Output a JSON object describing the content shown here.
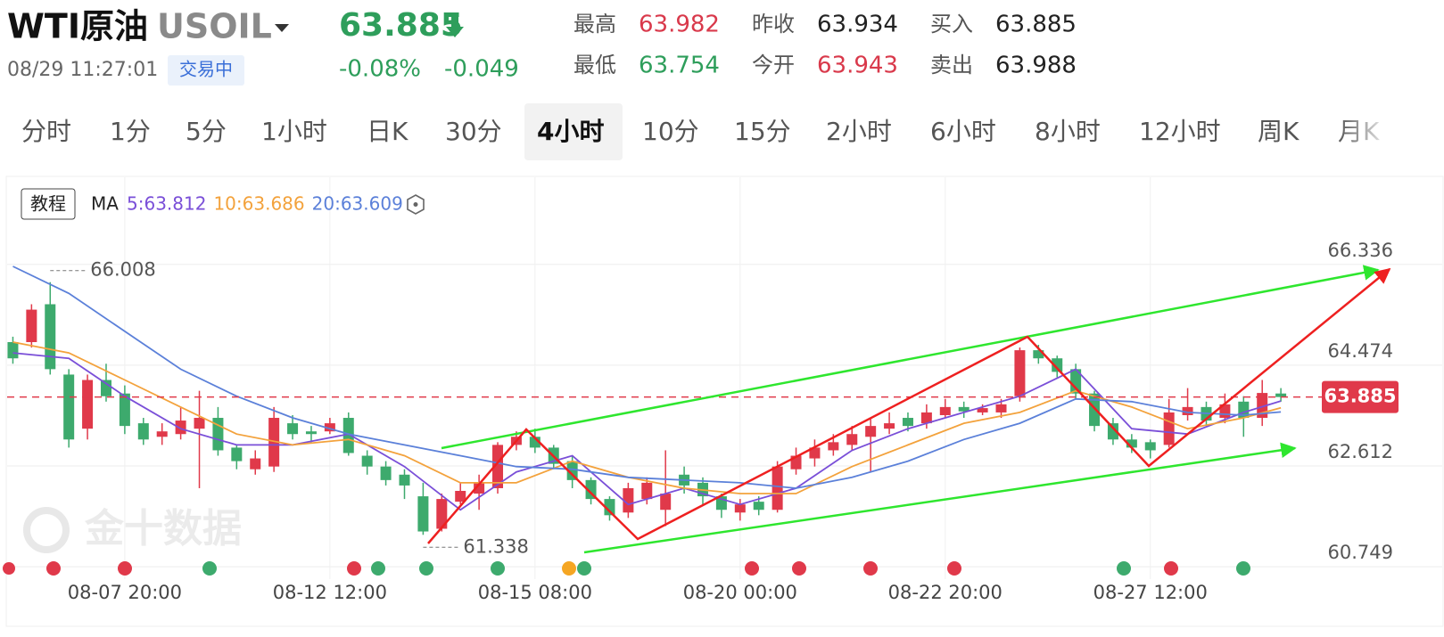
{
  "header": {
    "name": "WTI原油",
    "symbol": "USOIL",
    "price": "63.885",
    "time": "08/29 11:27:01",
    "status": "交易中",
    "change_pct": "-0.08%",
    "change": "-0.049",
    "stats": [
      {
        "label": "最高",
        "value": "63.982",
        "color": "#d9394b"
      },
      {
        "label": "昨收",
        "value": "63.934",
        "color": "#222222"
      },
      {
        "label": "买入",
        "value": "63.885",
        "color": "#222222"
      },
      {
        "label": "最低",
        "value": "63.754",
        "color": "#2e9e5b"
      },
      {
        "label": "今开",
        "value": "63.943",
        "color": "#d9394b"
      },
      {
        "label": "卖出",
        "value": "63.988",
        "color": "#222222"
      }
    ]
  },
  "tabs": [
    "分时",
    "1分",
    "5分",
    "1小时",
    "日K",
    "30分",
    "4小时",
    "10分",
    "15分",
    "2小时",
    "6小时",
    "8小时",
    "12小时",
    "周K",
    "月K"
  ],
  "active_tab": 6,
  "toolbar": {
    "tutorial": "教程",
    "ma_label": "MA"
  },
  "watermark": "金十数据",
  "chart_data": {
    "type": "candlestick",
    "up_color": "#e0394a",
    "down_color": "#3daa6d",
    "x": [
      0,
      1,
      2,
      3,
      4,
      5,
      6,
      7,
      8,
      9,
      10,
      11,
      12,
      13,
      14,
      15,
      16,
      17,
      18,
      19,
      20,
      21,
      22,
      23,
      24,
      25,
      26,
      27,
      28,
      29,
      30,
      31,
      32,
      33,
      34,
      35,
      36,
      37,
      38,
      39,
      40,
      41,
      42,
      43,
      44,
      45,
      46,
      47,
      48,
      49,
      50,
      51,
      52,
      53,
      54,
      55,
      56,
      57,
      58,
      59,
      60,
      61,
      62,
      63,
      64,
      65,
      66,
      67,
      68
    ],
    "open": [
      64.9,
      64.9,
      65.6,
      64.3,
      63.3,
      64.2,
      63.95,
      63.4,
      63.15,
      63.2,
      63.3,
      63.5,
      62.95,
      62.55,
      62.6,
      63.4,
      63.25,
      63.25,
      63.5,
      62.8,
      62.6,
      62.45,
      62.05,
      61.45,
      61.95,
      62.1,
      62.2,
      63.0,
      63.15,
      62.95,
      62.7,
      62.35,
      62.0,
      61.75,
      62.0,
      61.8,
      62.45,
      62.3,
      62.05,
      61.75,
      61.95,
      61.8,
      62.55,
      62.75,
      62.9,
      63.0,
      63.15,
      63.3,
      63.5,
      63.4,
      63.55,
      63.7,
      63.6,
      63.6,
      63.9,
      64.75,
      64.6,
      64.4,
      63.95,
      63.4,
      63.1,
      63.05,
      63.0,
      63.55,
      63.7,
      63.5,
      63.8,
      63.5,
      63.95
    ],
    "high": [
      65.0,
      65.6,
      66.008,
      64.4,
      64.3,
      64.5,
      64.1,
      63.5,
      63.4,
      63.7,
      64.0,
      63.7,
      63.0,
      62.9,
      63.7,
      63.55,
      63.35,
      63.5,
      63.6,
      62.9,
      62.7,
      62.55,
      62.3,
      62.1,
      62.3,
      62.45,
      63.05,
      63.25,
      63.3,
      63.0,
      62.8,
      62.4,
      62.05,
      62.3,
      62.4,
      62.9,
      62.6,
      62.4,
      62.1,
      62.0,
      62.05,
      62.7,
      62.95,
      63.1,
      63.2,
      63.35,
      63.5,
      63.6,
      63.6,
      63.75,
      63.85,
      63.8,
      63.75,
      63.85,
      64.8,
      64.85,
      64.65,
      64.5,
      64.0,
      63.5,
      63.2,
      63.1,
      63.85,
      64.05,
      63.8,
      63.95,
      63.9,
      64.2,
      64.05
    ],
    "low": [
      64.5,
      64.8,
      64.3,
      62.95,
      63.1,
      63.8,
      63.2,
      63.0,
      63.0,
      63.1,
      62.2,
      62.8,
      62.55,
      62.45,
      62.5,
      63.1,
      63.05,
      63.2,
      62.8,
      62.45,
      62.25,
      62.0,
      61.338,
      61.4,
      61.9,
      61.8,
      62.1,
      62.9,
      62.85,
      62.55,
      62.2,
      61.9,
      61.6,
      61.65,
      61.9,
      61.5,
      62.1,
      61.9,
      61.65,
      61.6,
      61.7,
      61.75,
      62.45,
      62.6,
      62.8,
      62.9,
      62.5,
      63.2,
      63.25,
      63.3,
      63.5,
      63.5,
      63.55,
      63.5,
      63.8,
      64.5,
      64.25,
      63.85,
      63.25,
      63.0,
      62.85,
      62.75,
      62.95,
      63.45,
      63.35,
      63.4,
      63.15,
      63.35,
      63.8
    ],
    "close": [
      64.6,
      65.5,
      64.4,
      63.1,
      64.2,
      63.9,
      63.35,
      63.1,
      63.25,
      63.45,
      63.5,
      62.9,
      62.7,
      62.75,
      63.5,
      63.2,
      63.2,
      63.4,
      62.85,
      62.6,
      62.35,
      62.25,
      61.4,
      62.0,
      62.15,
      62.3,
      63.0,
      63.15,
      62.95,
      62.65,
      62.35,
      62.0,
      61.7,
      62.2,
      62.3,
      62.1,
      62.25,
      62.05,
      61.8,
      61.9,
      61.8,
      62.6,
      62.8,
      62.95,
      63.05,
      63.2,
      63.35,
      63.4,
      63.35,
      63.6,
      63.7,
      63.62,
      63.68,
      63.75,
      64.75,
      64.6,
      64.35,
      63.95,
      63.35,
      63.1,
      62.95,
      62.9,
      63.6,
      63.7,
      63.45,
      63.75,
      63.5,
      63.96,
      63.885
    ],
    "ma": [
      {
        "legend": "5:63.812",
        "color": "#7a4fd8",
        "x": [
          0,
          3,
          6,
          9,
          12,
          15,
          18,
          21,
          24,
          27,
          30,
          33,
          36,
          39,
          42,
          45,
          48,
          51,
          54,
          57,
          60,
          63,
          66,
          68
        ],
        "values": [
          64.7,
          64.6,
          63.9,
          63.3,
          63.0,
          63.0,
          63.2,
          62.6,
          61.8,
          62.5,
          62.8,
          61.9,
          62.2,
          61.9,
          62.2,
          62.9,
          63.3,
          63.6,
          63.9,
          64.4,
          63.3,
          63.2,
          63.6,
          63.812
        ]
      },
      {
        "legend": "10:63.686",
        "color": "#f3a23c",
        "x": [
          0,
          3,
          6,
          9,
          12,
          15,
          18,
          21,
          24,
          27,
          30,
          33,
          36,
          39,
          42,
          45,
          48,
          51,
          54,
          57,
          60,
          63,
          66,
          68
        ],
        "values": [
          64.9,
          64.7,
          64.2,
          63.7,
          63.2,
          63.0,
          63.1,
          62.8,
          62.3,
          62.3,
          62.7,
          62.4,
          62.2,
          62.1,
          62.1,
          62.6,
          63.0,
          63.4,
          63.6,
          64.0,
          63.7,
          63.3,
          63.5,
          63.686
        ]
      },
      {
        "legend": "20:63.609",
        "color": "#5b80d9",
        "x": [
          0,
          3,
          6,
          9,
          12,
          15,
          18,
          21,
          24,
          27,
          30,
          33,
          36,
          39,
          42,
          45,
          48,
          51,
          54,
          57,
          60,
          63,
          66,
          68
        ],
        "values": [
          66.3,
          65.8,
          65.1,
          64.4,
          63.9,
          63.5,
          63.2,
          63.0,
          62.8,
          62.6,
          62.55,
          62.4,
          62.35,
          62.3,
          62.2,
          62.4,
          62.7,
          63.1,
          63.4,
          63.85,
          63.8,
          63.6,
          63.55,
          63.609
        ]
      }
    ],
    "xlim": [
      -0.5,
      74.5
    ],
    "xticks": [
      {
        "value": 6,
        "label": "08-07 20:00"
      },
      {
        "value": 17,
        "label": "08-12 12:00"
      },
      {
        "value": 28,
        "label": "08-15 08:00"
      },
      {
        "value": 39,
        "label": "08-20 00:00"
      },
      {
        "value": 50,
        "label": "08-22 20:00"
      },
      {
        "value": 61,
        "label": "08-27 12:00"
      }
    ],
    "ylim": [
      60.602,
      67.93
    ],
    "yticks": [
      60.749,
      62.612,
      64.474,
      66.336
    ],
    "grid": true
  }
}
